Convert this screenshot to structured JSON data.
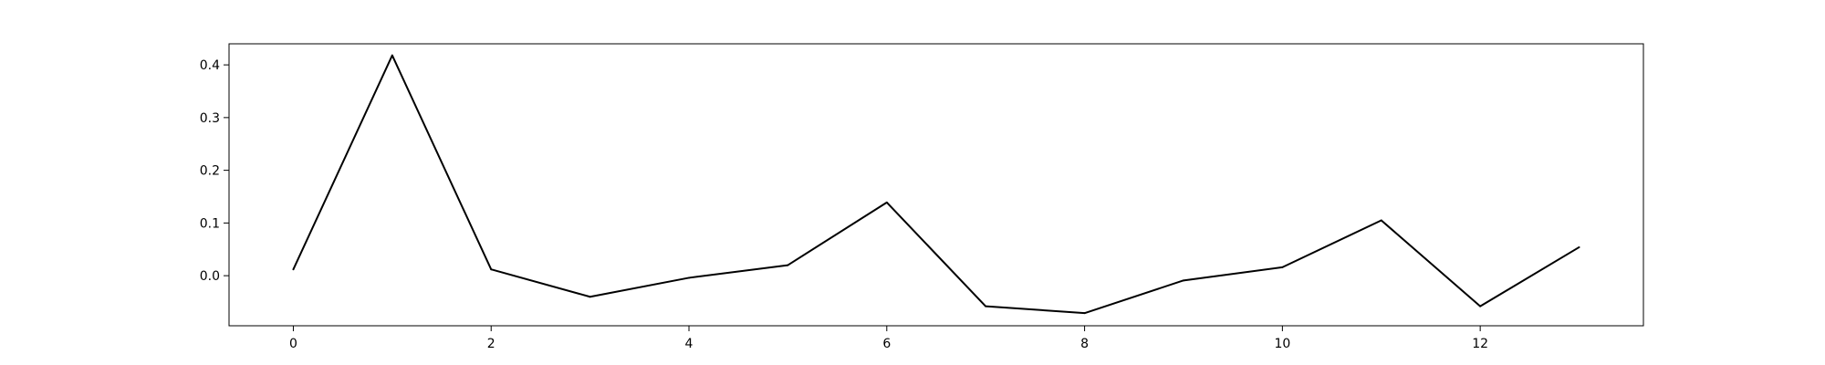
{
  "chart_data": {
    "type": "line",
    "title": "",
    "xlabel": "",
    "ylabel": "",
    "xlim": [
      -0.65,
      13.65
    ],
    "ylim": [
      -0.095,
      0.44
    ],
    "xticks": [
      0,
      2,
      4,
      6,
      8,
      10,
      12
    ],
    "yticks": [
      0.0,
      0.1,
      0.2,
      0.3,
      0.4
    ],
    "grid": false,
    "legend": "none",
    "series": [
      {
        "color": "#000000",
        "x": [
          0,
          1,
          2,
          3,
          4,
          5,
          6,
          7,
          8,
          9,
          10,
          11,
          12,
          13
        ],
        "y": [
          0.012,
          0.418,
          0.012,
          -0.04,
          -0.004,
          0.02,
          0.139,
          -0.058,
          -0.071,
          -0.009,
          0.016,
          0.105,
          -0.058,
          0.054
        ]
      }
    ]
  }
}
